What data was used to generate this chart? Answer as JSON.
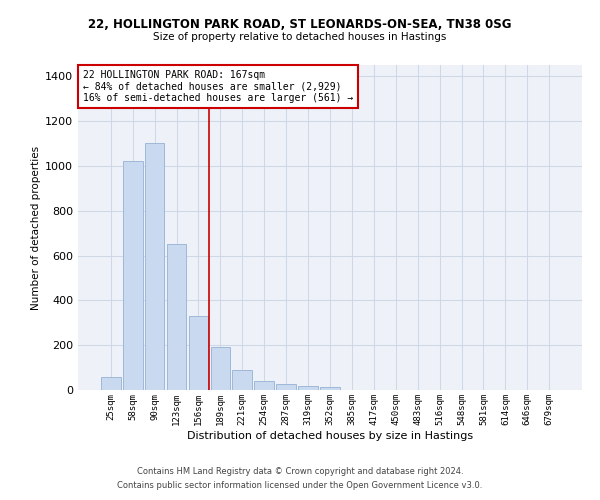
{
  "title1": "22, HOLLINGTON PARK ROAD, ST LEONARDS-ON-SEA, TN38 0SG",
  "title2": "Size of property relative to detached houses in Hastings",
  "xlabel": "Distribution of detached houses by size in Hastings",
  "ylabel": "Number of detached properties",
  "bar_labels": [
    "25sqm",
    "58sqm",
    "90sqm",
    "123sqm",
    "156sqm",
    "189sqm",
    "221sqm",
    "254sqm",
    "287sqm",
    "319sqm",
    "352sqm",
    "385sqm",
    "417sqm",
    "450sqm",
    "483sqm",
    "516sqm",
    "548sqm",
    "581sqm",
    "614sqm",
    "646sqm",
    "679sqm"
  ],
  "bar_values": [
    60,
    1020,
    1100,
    650,
    330,
    190,
    90,
    40,
    25,
    20,
    15,
    0,
    0,
    0,
    0,
    0,
    0,
    0,
    0,
    0,
    0
  ],
  "bar_color": "#c9d9f0",
  "bar_edge_color": "#a0b8d8",
  "grid_color": "#d0d8e8",
  "bg_color": "#eef2f8",
  "annotation_text": "22 HOLLINGTON PARK ROAD: 167sqm\n← 84% of detached houses are smaller (2,929)\n16% of semi-detached houses are larger (561) →",
  "vline_x": 4.5,
  "annotation_box_color": "#ffffff",
  "annotation_border_color": "#cc0000",
  "footer1": "Contains HM Land Registry data © Crown copyright and database right 2024.",
  "footer2": "Contains public sector information licensed under the Open Government Licence v3.0.",
  "ylim": [
    0,
    1450
  ],
  "yticks": [
    0,
    200,
    400,
    600,
    800,
    1000,
    1200,
    1400
  ]
}
